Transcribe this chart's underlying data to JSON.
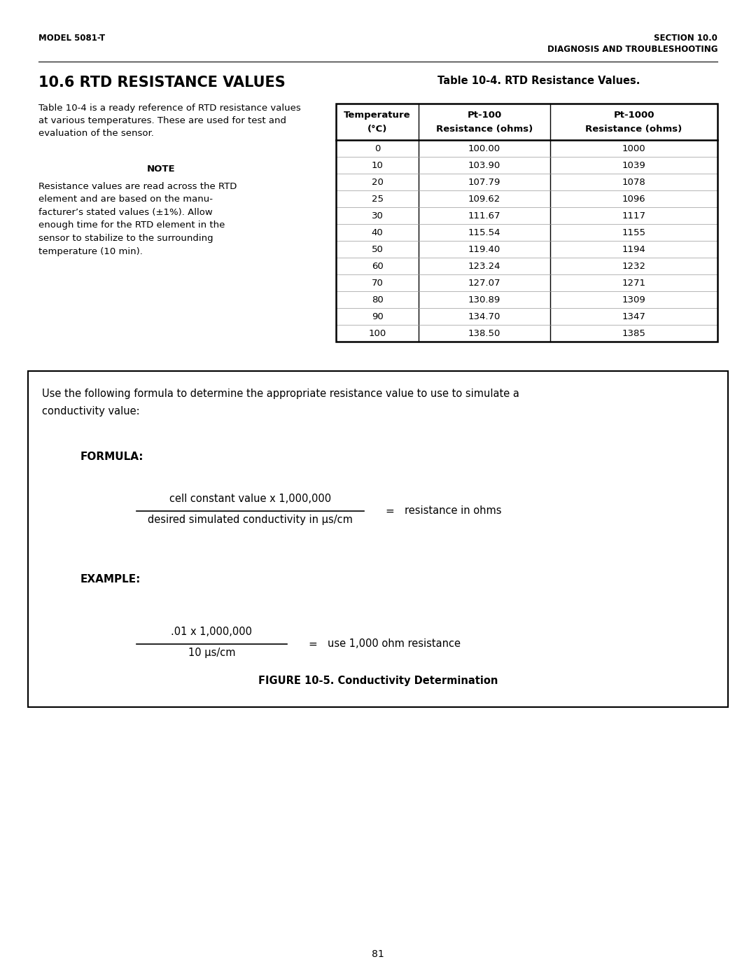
{
  "header_left": "MODEL 5081-T",
  "header_right_top": "SECTION 10.0",
  "header_right_bot": "DIAGNOSIS AND TROUBLESHOOTING",
  "section_title": "10.6 RTD RESISTANCE VALUES",
  "table_caption": "Table 10-4. RTD Resistance Values.",
  "body_text": "Table 10-4 is a ready reference of RTD resistance values\nat various temperatures. These are used for test and\nevaluation of the sensor.",
  "note_title": "NOTE",
  "note_body": "Resistance values are read across the RTD\nelement and are based on the manu-\nfacturer’s stated values (±1%). Allow\nenough time for the RTD element in the\nsensor to stabilize to the surrounding\ntemperature (10 min).",
  "table_headers_line1": [
    "Temperature",
    "Pt-100",
    "Pt-1000"
  ],
  "table_headers_line2": [
    "(°C)",
    "Resistance (ohms)",
    "Resistance (ohms)"
  ],
  "table_data": [
    [
      "0",
      "100.00",
      "1000"
    ],
    [
      "10",
      "103.90",
      "1039"
    ],
    [
      "20",
      "107.79",
      "1078"
    ],
    [
      "25",
      "109.62",
      "1096"
    ],
    [
      "30",
      "111.67",
      "1117"
    ],
    [
      "40",
      "115.54",
      "1155"
    ],
    [
      "50",
      "119.40",
      "1194"
    ],
    [
      "60",
      "123.24",
      "1232"
    ],
    [
      "70",
      "127.07",
      "1271"
    ],
    [
      "80",
      "130.89",
      "1309"
    ],
    [
      "90",
      "134.70",
      "1347"
    ],
    [
      "100",
      "138.50",
      "1385"
    ]
  ],
  "box_intro_line1": "Use the following formula to determine the appropriate resistance value to use to simulate a",
  "box_intro_line2": "conductivity value:",
  "formula_label": "FORMULA:",
  "formula_numerator": "cell constant value x 1,000,000",
  "formula_denominator": "desired simulated conductivity in μs/cm",
  "formula_equals": "=",
  "formula_result": "resistance in ohms",
  "example_label": "EXAMPLE:",
  "example_numerator": ".01 x 1,000,000",
  "example_denominator": "10 μs/cm",
  "example_equals": "=",
  "example_result": "use 1,000 ohm resistance",
  "figure_caption": "FIGURE 10-5. Conductivity Determination",
  "page_number": "81",
  "bg_color": "#ffffff",
  "text_color": "#000000"
}
